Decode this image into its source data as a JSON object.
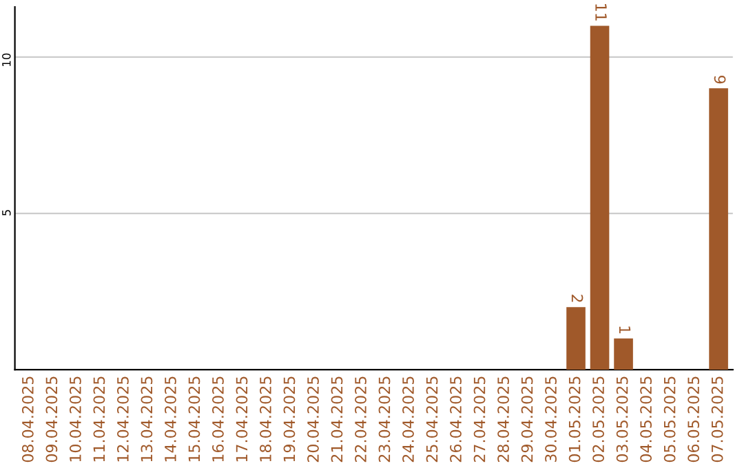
{
  "chart_data": {
    "type": "bar",
    "categories": [
      "08.04.2025",
      "09.04.2025",
      "10.04.2025",
      "11.04.2025",
      "12.04.2025",
      "13.04.2025",
      "14.04.2025",
      "15.04.2025",
      "16.04.2025",
      "17.04.2025",
      "18.04.2025",
      "19.04.2025",
      "20.04.2025",
      "21.04.2025",
      "22.04.2025",
      "23.04.2025",
      "24.04.2025",
      "25.04.2025",
      "26.04.2025",
      "27.04.2025",
      "28.04.2025",
      "29.04.2025",
      "30.04.2025",
      "01.05.2025",
      "02.05.2025",
      "03.05.2025",
      "04.05.2025",
      "05.05.2025",
      "06.05.2025",
      "07.05.2025"
    ],
    "values": [
      0,
      0,
      0,
      0,
      0,
      0,
      0,
      0,
      0,
      0,
      0,
      0,
      0,
      0,
      0,
      0,
      0,
      0,
      0,
      0,
      0,
      0,
      0,
      2,
      11,
      1,
      0,
      0,
      0,
      9
    ],
    "value_labels": [
      null,
      null,
      null,
      null,
      null,
      null,
      null,
      null,
      null,
      null,
      null,
      null,
      null,
      null,
      null,
      null,
      null,
      null,
      null,
      null,
      null,
      null,
      null,
      "2",
      "11",
      "1",
      null,
      null,
      null,
      "9"
    ],
    "color": "#a0592a",
    "ylim": [
      0,
      11.6
    ],
    "yticks": [
      5,
      10
    ],
    "grid": "y"
  }
}
